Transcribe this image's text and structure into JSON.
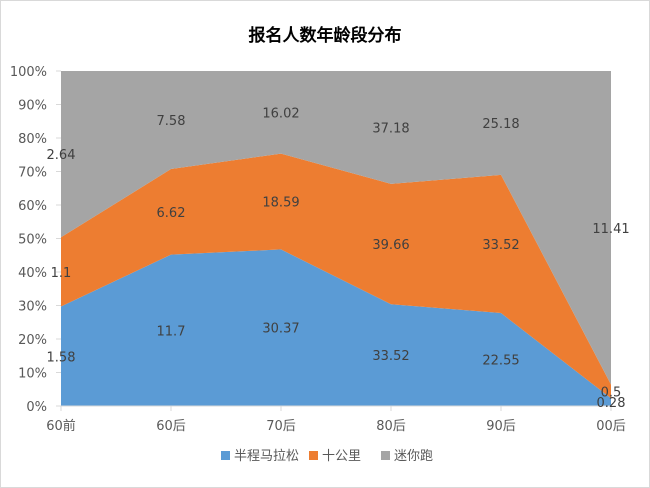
{
  "chart_data": {
    "type": "area",
    "stacked": "percent",
    "title": "报名人数年龄段分布",
    "categories": [
      "60前",
      "60后",
      "70后",
      "80后",
      "90后",
      "00后"
    ],
    "ylim": [
      0,
      100
    ],
    "yticks": [
      "0%",
      "10%",
      "20%",
      "30%",
      "40%",
      "50%",
      "60%",
      "70%",
      "80%",
      "90%",
      "100%"
    ],
    "series": [
      {
        "name": "半程马拉松",
        "color": "#5b9bd5",
        "values": [
          1.58,
          11.7,
          30.37,
          33.52,
          22.55,
          0.28
        ]
      },
      {
        "name": "十公里",
        "color": "#ed7d31",
        "values": [
          1.1,
          6.62,
          18.59,
          39.66,
          33.52,
          0.5
        ]
      },
      {
        "name": "迷你跑",
        "color": "#a5a5a5",
        "values": [
          2.64,
          7.58,
          16.02,
          37.18,
          25.18,
          11.41
        ]
      }
    ],
    "legend_position": "bottom",
    "grid": false
  }
}
